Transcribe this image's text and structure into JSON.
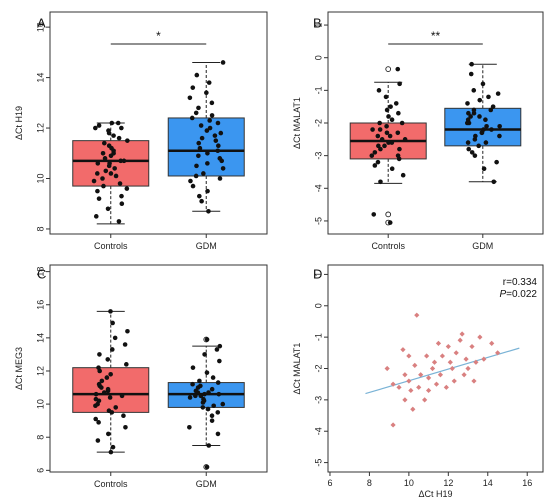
{
  "chart_data": [
    {
      "panel": "A",
      "type": "box",
      "ylabel": "ΔCt H19",
      "ylim": [
        7.8,
        16.6
      ],
      "yticks": [
        8,
        10,
        12,
        14,
        16
      ],
      "categories": [
        "Controls",
        "GDM"
      ],
      "colors": [
        "#f26b6b",
        "#3b96f0"
      ],
      "boxes": [
        {
          "min": 8.2,
          "q1": 9.7,
          "median": 10.7,
          "q3": 11.5,
          "max": 12.2,
          "outliers": []
        },
        {
          "min": 8.7,
          "q1": 10.1,
          "median": 11.1,
          "q3": 12.4,
          "max": 14.6,
          "outliers": []
        }
      ],
      "points": [
        [
          8.3,
          8.5,
          8.8,
          9.0,
          9.2,
          9.3,
          9.5,
          9.6,
          9.7,
          9.8,
          9.9,
          10.0,
          10.1,
          10.2,
          10.2,
          10.3,
          10.4,
          10.5,
          10.6,
          10.6,
          10.7,
          10.7,
          10.8,
          10.9,
          11.0,
          11.0,
          11.1,
          11.2,
          11.3,
          11.4,
          11.5,
          11.6,
          11.7,
          11.8,
          11.9,
          12.0,
          12.0,
          12.1,
          12.2,
          12.2
        ],
        [
          8.7,
          9.1,
          9.3,
          9.5,
          9.7,
          9.9,
          10.0,
          10.1,
          10.2,
          10.4,
          10.5,
          10.6,
          10.7,
          10.8,
          10.9,
          11.0,
          11.1,
          11.2,
          11.3,
          11.4,
          11.5,
          11.6,
          11.7,
          11.8,
          11.9,
          12.0,
          12.1,
          12.2,
          12.3,
          12.4,
          12.5,
          12.6,
          12.8,
          13.0,
          13.2,
          13.4,
          13.6,
          13.8,
          14.1,
          14.6
        ]
      ],
      "significance": "*"
    },
    {
      "panel": "B",
      "type": "box",
      "ylabel": "ΔCt MALAT1",
      "ylim": [
        -5.4,
        1.4
      ],
      "yticks": [
        -5,
        -4,
        -3,
        -2,
        -1,
        0,
        1
      ],
      "categories": [
        "Controls",
        "GDM"
      ],
      "colors": [
        "#f26b6b",
        "#3b96f0"
      ],
      "boxes": [
        {
          "min": -3.85,
          "q1": -3.1,
          "median": -2.55,
          "q3": -2.0,
          "max": -0.75,
          "outliers": [
            -0.35,
            -4.8,
            -5.05
          ]
        },
        {
          "min": -3.8,
          "q1": -2.7,
          "median": -2.2,
          "q3": -1.55,
          "max": -0.2,
          "outliers": []
        }
      ],
      "points": [
        [
          -3.8,
          -3.6,
          -3.4,
          -3.3,
          -3.2,
          -3.1,
          -3.0,
          -3.0,
          -2.9,
          -2.8,
          -2.8,
          -2.7,
          -2.7,
          -2.6,
          -2.6,
          -2.5,
          -2.5,
          -2.4,
          -2.4,
          -2.3,
          -2.3,
          -2.2,
          -2.2,
          -2.1,
          -2.0,
          -2.0,
          -1.9,
          -1.8,
          -1.7,
          -1.6,
          -1.5,
          -1.4,
          -1.2,
          -1.0,
          -0.8,
          -0.35,
          -4.8,
          -5.05
        ],
        [
          -3.8,
          -3.4,
          -3.2,
          -3.0,
          -2.9,
          -2.8,
          -2.7,
          -2.6,
          -2.6,
          -2.5,
          -2.4,
          -2.4,
          -2.3,
          -2.3,
          -2.2,
          -2.2,
          -2.1,
          -2.1,
          -2.0,
          -2.0,
          -1.9,
          -1.9,
          -1.8,
          -1.8,
          -1.7,
          -1.7,
          -1.6,
          -1.6,
          -1.5,
          -1.4,
          -1.3,
          -1.2,
          -1.1,
          -1.0,
          -0.8,
          -0.5,
          -0.2
        ]
      ],
      "significance": "**"
    },
    {
      "panel": "C",
      "type": "box",
      "ylabel": "ΔCt MEG3",
      "ylim": [
        5.9,
        18.4
      ],
      "yticks": [
        6,
        8,
        10,
        12,
        14,
        16,
        18
      ],
      "categories": [
        "Controls",
        "GDM"
      ],
      "colors": [
        "#f26b6b",
        "#3b96f0"
      ],
      "boxes": [
        {
          "min": 7.1,
          "q1": 9.5,
          "median": 10.6,
          "q3": 12.2,
          "max": 15.6,
          "outliers": []
        },
        {
          "min": 7.5,
          "q1": 9.8,
          "median": 10.6,
          "q3": 11.3,
          "max": 13.5,
          "outliers": [
            13.9,
            6.2
          ]
        }
      ],
      "points": [
        [
          7.1,
          7.4,
          7.8,
          8.2,
          8.6,
          8.9,
          9.1,
          9.3,
          9.5,
          9.6,
          9.8,
          9.9,
          10.0,
          10.2,
          10.3,
          10.4,
          10.5,
          10.6,
          10.7,
          10.8,
          10.9,
          11.0,
          11.1,
          11.2,
          11.4,
          11.6,
          11.8,
          12.0,
          12.2,
          12.4,
          12.7,
          13.0,
          13.3,
          13.6,
          14.0,
          14.4,
          14.9,
          15.6
        ],
        [
          6.2,
          7.5,
          8.2,
          8.6,
          9.0,
          9.3,
          9.5,
          9.7,
          9.8,
          9.9,
          10.0,
          10.1,
          10.2,
          10.3,
          10.4,
          10.5,
          10.5,
          10.6,
          10.6,
          10.7,
          10.7,
          10.8,
          10.9,
          11.0,
          11.1,
          11.2,
          11.3,
          11.4,
          11.6,
          11.9,
          12.2,
          12.6,
          13.0,
          13.3,
          13.5,
          13.9
        ]
      ],
      "significance": ""
    },
    {
      "panel": "D",
      "type": "scatter",
      "xlabel": "ΔCt H19",
      "ylabel": "ΔCt MALAT1",
      "xlim": [
        5.9,
        16.8
      ],
      "ylim": [
        -5.3,
        1.3
      ],
      "xticks": [
        6,
        8,
        10,
        12,
        14,
        16
      ],
      "yticks": [
        -5,
        -4,
        -3,
        -2,
        -1,
        0,
        1
      ],
      "color": "#d98080",
      "line_color": "#7ab3d6",
      "points": [
        [
          8.9,
          -2.0
        ],
        [
          9.2,
          -2.5
        ],
        [
          9.2,
          -3.8
        ],
        [
          9.5,
          -2.6
        ],
        [
          9.7,
          -1.4
        ],
        [
          9.8,
          -2.2
        ],
        [
          9.8,
          -3.0
        ],
        [
          10.0,
          -1.6
        ],
        [
          10.0,
          -2.4
        ],
        [
          10.1,
          -2.7
        ],
        [
          10.2,
          -3.3
        ],
        [
          10.3,
          -1.9
        ],
        [
          10.4,
          -0.3
        ],
        [
          10.5,
          -2.6
        ],
        [
          10.6,
          -2.2
        ],
        [
          10.8,
          -3.0
        ],
        [
          10.9,
          -1.6
        ],
        [
          11.0,
          -2.3
        ],
        [
          11.0,
          -2.7
        ],
        [
          11.2,
          -2.0
        ],
        [
          11.3,
          -1.8
        ],
        [
          11.4,
          -2.5
        ],
        [
          11.5,
          -1.2
        ],
        [
          11.6,
          -2.2
        ],
        [
          11.7,
          -1.6
        ],
        [
          11.9,
          -2.6
        ],
        [
          12.0,
          -1.3
        ],
        [
          12.1,
          -1.8
        ],
        [
          12.2,
          -2.0
        ],
        [
          12.3,
          -2.4
        ],
        [
          12.4,
          -1.5
        ],
        [
          12.6,
          -1.1
        ],
        [
          12.7,
          -0.9
        ],
        [
          12.8,
          -2.2
        ],
        [
          12.9,
          -1.7
        ],
        [
          13.0,
          -2.0
        ],
        [
          13.2,
          -1.3
        ],
        [
          13.3,
          -2.4
        ],
        [
          13.4,
          -1.8
        ],
        [
          13.6,
          -1.0
        ],
        [
          13.8,
          -1.7
        ],
        [
          14.2,
          -1.2
        ],
        [
          14.5,
          -1.5
        ]
      ],
      "regression": {
        "x": [
          7.8,
          15.6
        ],
        "y": [
          -2.8,
          -1.35
        ]
      },
      "annotation": {
        "r": "r=0.334",
        "p_label": "P",
        "p_value": "=0.022"
      }
    }
  ]
}
